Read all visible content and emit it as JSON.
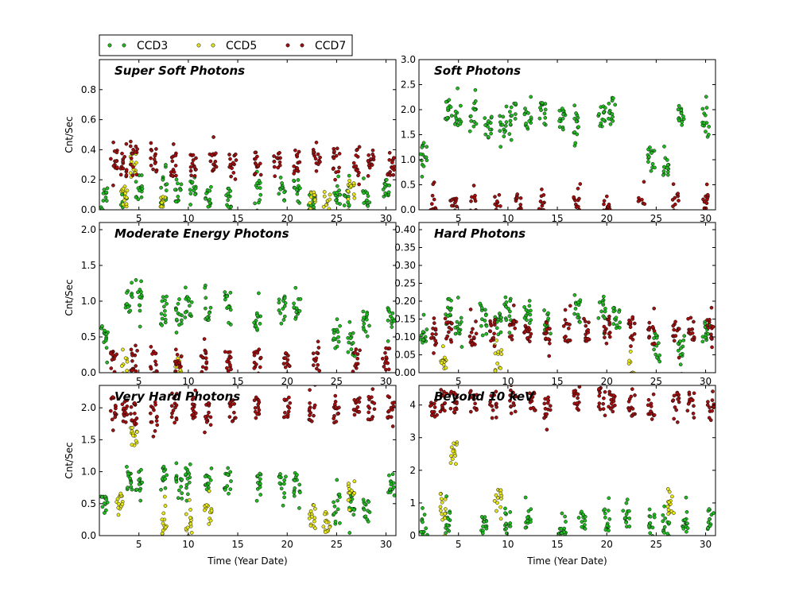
{
  "chart_data": {
    "type": "scatter",
    "legend": {
      "placement": "top-left",
      "entries": [
        {
          "name": "CCD3",
          "color": "#22b822"
        },
        {
          "name": "CCD5",
          "color": "#e5e51a"
        },
        {
          "name": "CCD7",
          "color": "#a01010"
        }
      ]
    },
    "xlabel": "Time (Year Date)",
    "ylabel": "Cnt/Sec",
    "xlim": [
      1,
      31
    ],
    "xticks": [
      5,
      10,
      15,
      20,
      25,
      30
    ],
    "xtick_labels": [
      "5",
      "10",
      "15",
      "20",
      "25",
      "30"
    ],
    "panels": [
      {
        "title": "Super Soft Photons",
        "ylim": [
          0,
          1.0
        ],
        "yticks": [
          0.0,
          0.2,
          0.4,
          0.6,
          0.8
        ],
        "ytick_labels": [
          "0.0",
          "0.2",
          "0.4",
          "0.6",
          "0.8"
        ],
        "series": [
          {
            "name": "CCD3",
            "color": "#22b822",
            "x": [
              1.5,
              3.5,
              5,
              7.5,
              9,
              10.5,
              12,
              14,
              17,
              19.5,
              21,
              22.5,
              25,
              26,
              28,
              30
            ],
            "y": [
              0.06,
              0.05,
              0.15,
              0.14,
              0.12,
              0.14,
              0.1,
              0.08,
              0.12,
              0.13,
              0.12,
              0.04,
              0.05,
              0.06,
              0.07,
              0.12
            ]
          },
          {
            "name": "CCD5",
            "color": "#e5e51a",
            "x": [
              3.5,
              4.5,
              7.5,
              22.5,
              24,
              26.5
            ],
            "y": [
              0.08,
              0.3,
              0.02,
              0.05,
              0.04,
              0.1
            ]
          },
          {
            "name": "CCD7",
            "color": "#a01010",
            "x": [
              2.5,
              3.5,
              4.5,
              6.5,
              8.5,
              10.5,
              12.5,
              14.5,
              17,
              19,
              21,
              23,
              25,
              27,
              28.5,
              30.5
            ],
            "y": [
              0.32,
              0.3,
              0.36,
              0.33,
              0.3,
              0.3,
              0.31,
              0.3,
              0.31,
              0.3,
              0.32,
              0.33,
              0.33,
              0.3,
              0.32,
              0.3
            ]
          }
        ]
      },
      {
        "title": "Soft Photons",
        "ylim": [
          0,
          3.0
        ],
        "yticks": [
          0.0,
          0.5,
          1.0,
          1.5,
          2.0,
          2.5,
          3.0
        ],
        "ytick_labels": [
          "0.0",
          "0.5",
          "1.0",
          "1.5",
          "2.0",
          "2.5",
          "3.0"
        ],
        "series": [
          {
            "name": "CCD3",
            "color": "#22b822",
            "x": [
              1.5,
              4,
              5,
              6.5,
              8,
              9.5,
              10.5,
              12,
              13.5,
              15.5,
              17,
              19.5,
              20.5,
              24.5,
              26,
              27.5,
              30
            ],
            "y": [
              1.1,
              2.0,
              1.9,
              1.9,
              1.6,
              1.7,
              1.9,
              1.8,
              1.9,
              1.8,
              1.7,
              1.9,
              2.0,
              1.0,
              0.9,
              1.9,
              1.8
            ]
          },
          {
            "name": "CCD5",
            "color": "#e5e51a",
            "x": [],
            "y": []
          },
          {
            "name": "CCD7",
            "color": "#a01010",
            "x": [
              2.5,
              4.5,
              6.5,
              9,
              11,
              13.5,
              17,
              20,
              23.5,
              27,
              30
            ],
            "y": [
              0.06,
              0.08,
              0.07,
              0.06,
              0.07,
              0.06,
              0.08,
              0.07,
              0.05,
              0.1,
              0.06
            ]
          }
        ]
      },
      {
        "title": "Moderate Energy Photons",
        "ylim": [
          0,
          2.1
        ],
        "yticks": [
          0.0,
          0.5,
          1.0,
          1.5,
          2.0
        ],
        "ytick_labels": [
          "0.0",
          "0.5",
          "1.0",
          "1.5",
          "2.0"
        ],
        "series": [
          {
            "name": "CCD3",
            "color": "#22b822",
            "x": [
              1.5,
              4,
              5,
              7.5,
              9,
              10,
              12,
              14,
              17,
              19.5,
              21,
              25,
              26.5,
              28,
              30.5
            ],
            "y": [
              0.5,
              1.0,
              1.0,
              0.9,
              0.8,
              0.9,
              0.9,
              1.0,
              0.8,
              0.9,
              0.9,
              0.5,
              0.4,
              0.7,
              0.8
            ]
          },
          {
            "name": "CCD5",
            "color": "#e5e51a",
            "x": [
              3.5,
              9
            ],
            "y": [
              0.05,
              0.1
            ]
          },
          {
            "name": "CCD7",
            "color": "#a01010",
            "x": [
              2.5,
              4.5,
              6.5,
              9,
              11.5,
              14,
              17,
              20,
              23,
              27,
              30
            ],
            "y": [
              0.15,
              0.18,
              0.15,
              0.1,
              0.15,
              0.15,
              0.2,
              0.15,
              0.18,
              0.2,
              0.2
            ]
          }
        ]
      },
      {
        "title": "Hard Photons",
        "ylim": [
          0,
          0.42
        ],
        "yticks": [
          0.0,
          0.05,
          0.1,
          0.15,
          0.2,
          0.25,
          0.3,
          0.35,
          0.4
        ],
        "ytick_labels": [
          "0.00",
          "0.05",
          "0.10",
          "0.15",
          "0.20",
          "0.25",
          "0.30",
          "0.35",
          "0.40"
        ],
        "series": [
          {
            "name": "CCD3",
            "color": "#22b822",
            "x": [
              1.5,
              4,
              5,
              7.5,
              9,
              10,
              12,
              14,
              17,
              19.5,
              21,
              25,
              27.5,
              30
            ],
            "y": [
              0.1,
              0.18,
              0.14,
              0.16,
              0.14,
              0.18,
              0.16,
              0.15,
              0.17,
              0.18,
              0.15,
              0.08,
              0.07,
              0.12
            ]
          },
          {
            "name": "CCD5",
            "color": "#e5e51a",
            "x": [
              3.5,
              9,
              22.5
            ],
            "y": [
              0.02,
              0.03,
              0.01
            ]
          },
          {
            "name": "CCD7",
            "color": "#a01010",
            "x": [
              2.5,
              4,
              6.5,
              8.5,
              10.5,
              12,
              14,
              16,
              18,
              20,
              22.5,
              24.5,
              27,
              28.5,
              30.5
            ],
            "y": [
              0.11,
              0.12,
              0.11,
              0.12,
              0.12,
              0.11,
              0.11,
              0.12,
              0.12,
              0.13,
              0.12,
              0.11,
              0.11,
              0.12,
              0.12
            ]
          }
        ]
      },
      {
        "title": "Very Hard Photons",
        "ylim": [
          0,
          2.35
        ],
        "yticks": [
          0.0,
          0.5,
          1.0,
          1.5,
          2.0
        ],
        "ytick_labels": [
          "0.0",
          "0.5",
          "1.0",
          "1.5",
          "2.0"
        ],
        "series": [
          {
            "name": "CCD3",
            "color": "#22b822",
            "x": [
              1.5,
              4,
              5,
              7.5,
              9,
              10,
              12,
              14,
              17,
              19.5,
              21,
              25,
              26.5,
              28,
              30.5
            ],
            "y": [
              0.5,
              0.9,
              0.85,
              0.9,
              0.75,
              0.9,
              0.85,
              0.9,
              0.8,
              0.85,
              0.8,
              0.5,
              0.45,
              0.4,
              0.8
            ]
          },
          {
            "name": "CCD5",
            "color": "#e5e51a",
            "x": [
              3,
              4.5,
              7.5,
              10,
              12,
              22.5,
              24,
              26.5
            ],
            "y": [
              0.5,
              1.5,
              0.2,
              0.2,
              0.3,
              0.3,
              0.2,
              0.7
            ]
          },
          {
            "name": "CCD7",
            "color": "#a01010",
            "x": [
              2.5,
              3.5,
              4.5,
              6.5,
              8.5,
              10.5,
              12,
              14.5,
              17,
              20,
              22.5,
              25,
              27,
              28.5,
              30.5
            ],
            "y": [
              2.0,
              1.95,
              1.9,
              1.9,
              2.0,
              2.0,
              1.9,
              1.95,
              2.0,
              2.0,
              1.95,
              1.95,
              1.95,
              2.0,
              2.0
            ]
          }
        ]
      },
      {
        "title": "Beyond 10 keV",
        "ylim": [
          0,
          4.6
        ],
        "yticks": [
          0,
          1,
          2,
          3,
          4
        ],
        "ytick_labels": [
          "0",
          "1",
          "2",
          "3",
          "4"
        ],
        "series": [
          {
            "name": "CCD3",
            "color": "#22b822",
            "x": [
              1.5,
              4,
              7.5,
              10,
              12,
              15.5,
              17.5,
              20,
              22,
              24.5,
              26,
              28,
              30.5
            ],
            "y": [
              0.3,
              0.4,
              0.5,
              0.5,
              0.6,
              0.4,
              0.5,
              0.5,
              0.4,
              0.3,
              0.3,
              0.4,
              0.5
            ]
          },
          {
            "name": "CCD5",
            "color": "#e5e51a",
            "x": [
              3.5,
              4.5,
              9,
              26.5
            ],
            "y": [
              0.8,
              2.5,
              1.1,
              1.0
            ]
          },
          {
            "name": "CCD7",
            "color": "#a01010",
            "x": [
              2.5,
              3.5,
              4.5,
              6.5,
              8.5,
              10.5,
              12.5,
              14,
              17,
              19.5,
              20.5,
              22.5,
              24.5,
              27,
              28.5,
              30.5
            ],
            "y": [
              4.0,
              4.1,
              4.0,
              4.1,
              4.2,
              4.1,
              4.2,
              4.0,
              4.2,
              4.2,
              4.1,
              4.0,
              4.0,
              4.1,
              4.1,
              4.1
            ]
          }
        ]
      }
    ]
  }
}
